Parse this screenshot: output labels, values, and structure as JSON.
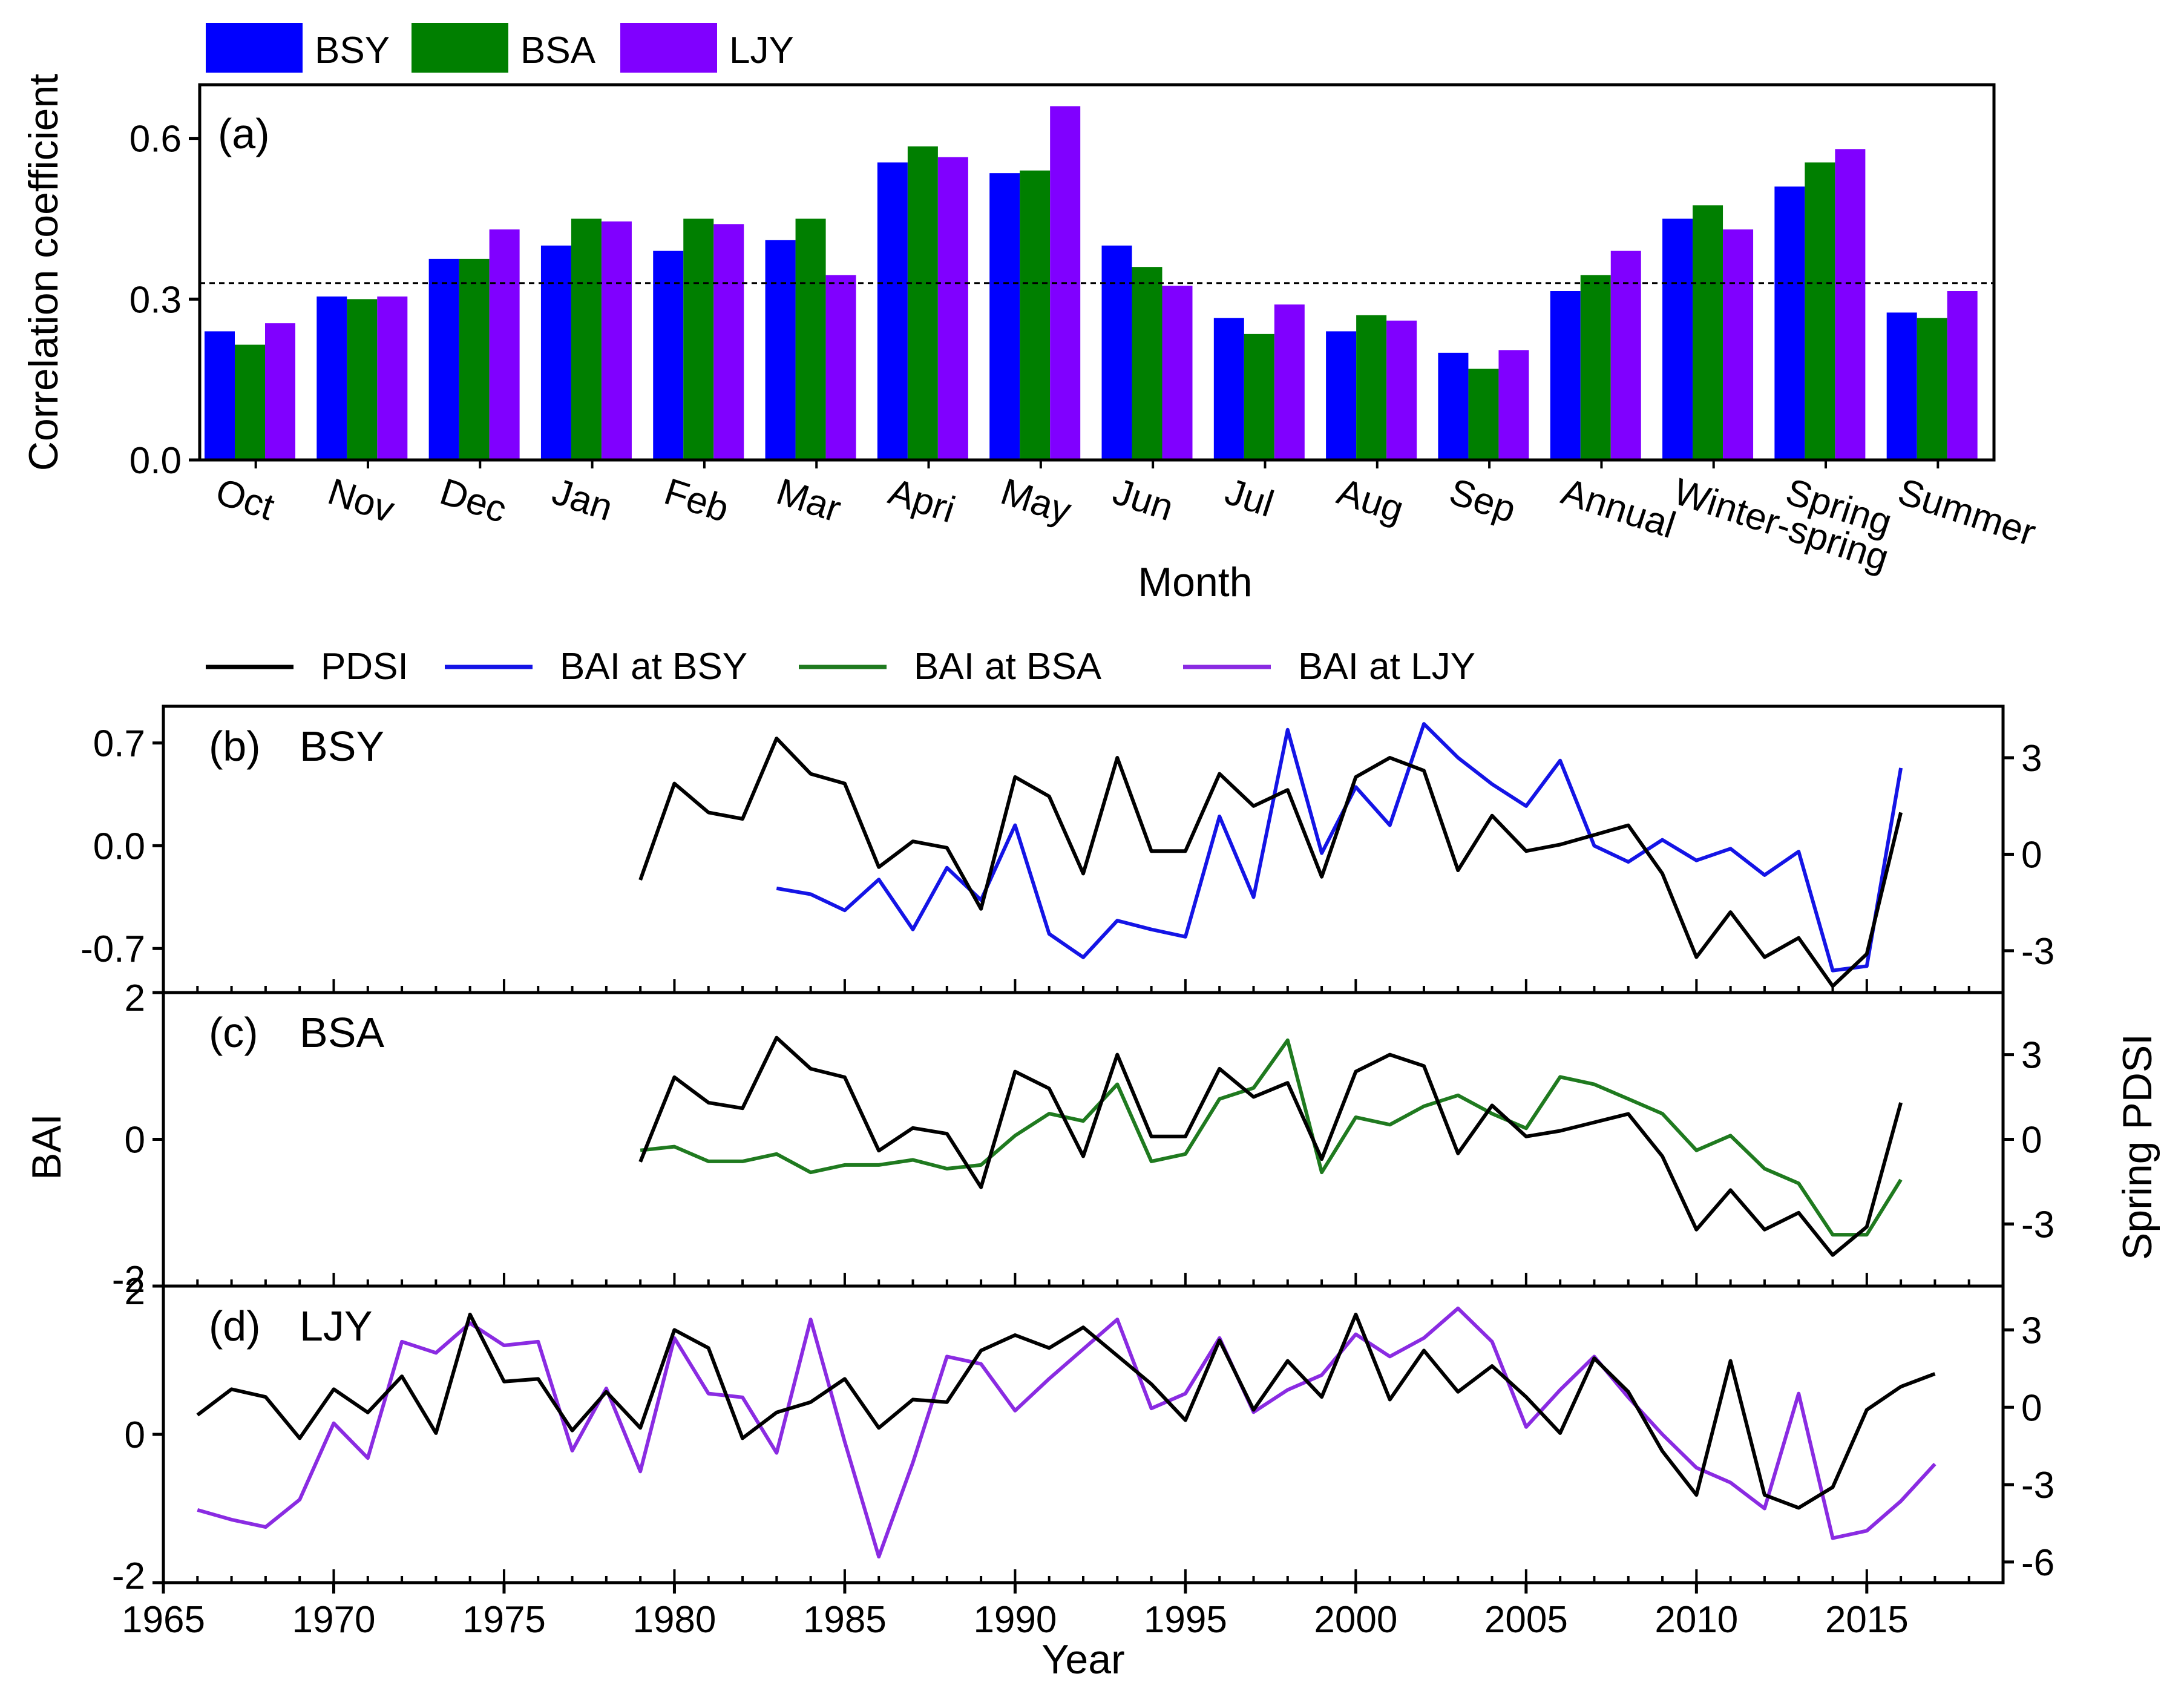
{
  "figure": {
    "title": ""
  },
  "chart_data": [
    {
      "type": "bar",
      "panel_label": "(a)",
      "ylabel": "Correlation coefficient",
      "xlabel": "Month",
      "ylim": [
        0,
        0.7
      ],
      "yticks": [
        0.0,
        0.3,
        0.6
      ],
      "yticklabels": [
        "0.0",
        "0.3",
        "0.6"
      ],
      "threshold": 0.33,
      "categories": [
        "Oct",
        "Nov",
        "Dec",
        "Jan",
        "Feb",
        "Mar",
        "Apri",
        "May",
        "Jun",
        "Jul",
        "Aug",
        "Sep",
        "Annual",
        "Winter-spring",
        "Spring",
        "Summer"
      ],
      "legend": [
        "BSY",
        "BSA",
        "LJY"
      ],
      "series": [
        {
          "name": "BSY",
          "color": "#0000ff",
          "values": [
            0.24,
            0.305,
            0.375,
            0.4,
            0.39,
            0.41,
            0.555,
            0.535,
            0.4,
            0.265,
            0.24,
            0.2,
            0.315,
            0.45,
            0.51,
            0.275
          ]
        },
        {
          "name": "BSA",
          "color": "#007f00",
          "values": [
            0.215,
            0.3,
            0.375,
            0.45,
            0.45,
            0.45,
            0.585,
            0.54,
            0.36,
            0.235,
            0.27,
            0.17,
            0.345,
            0.475,
            0.555,
            0.265
          ]
        },
        {
          "name": "LJY",
          "color": "#8000ff",
          "values": [
            0.255,
            0.305,
            0.43,
            0.445,
            0.44,
            0.345,
            0.565,
            0.66,
            0.325,
            0.29,
            0.26,
            0.205,
            0.39,
            0.43,
            0.58,
            0.315
          ]
        }
      ]
    },
    {
      "type": "line",
      "legend": [
        "PDSI",
        "BAI at BSY",
        "BAI at BSA",
        "BAI at LJY"
      ],
      "xlabel": "Year",
      "xlim": [
        1965,
        2019
      ],
      "xticks": [
        1965,
        1970,
        1975,
        1980,
        1985,
        1990,
        1995,
        2000,
        2005,
        2010,
        2015
      ],
      "shared_ylabel_left": "BAI",
      "shared_ylabel_right": "Spring PDSI",
      "panels": [
        {
          "label": "(b)",
          "site": "BSY",
          "ylim": [
            -1.0,
            0.95
          ],
          "yticks": [
            -0.7,
            0.0,
            0.7
          ],
          "yticklabels": [
            "-0.7",
            "0.0",
            "0.7"
          ],
          "y2lim": [
            -4.3,
            4.6
          ],
          "y2ticks": [
            -3,
            0,
            3
          ],
          "y2ticklabels": [
            "-3",
            "0",
            "3"
          ],
          "series": [
            {
              "name": "PDSI",
              "color": "#000000",
              "x": [
                1979,
                1980,
                1981,
                1982,
                1983,
                1984,
                1985,
                1986,
                1987,
                1988,
                1989,
                1990,
                1991,
                1992,
                1993,
                1994,
                1995,
                1996,
                1997,
                1998,
                1999,
                2000,
                2001,
                2002,
                2003,
                2004,
                2005,
                2006,
                2007,
                2008,
                2009,
                2010,
                2011,
                2012,
                2013,
                2014,
                2015,
                2016
              ],
              "y": [
                -0.8,
                2.2,
                1.3,
                1.1,
                3.6,
                2.5,
                2.2,
                -0.4,
                0.4,
                0.2,
                -1.7,
                2.4,
                1.8,
                -0.6,
                3.0,
                0.1,
                0.1,
                2.5,
                1.5,
                2.0,
                -0.7,
                2.4,
                3.0,
                2.6,
                -0.5,
                1.2,
                0.1,
                0.3,
                0.6,
                0.9,
                -0.6,
                -3.2,
                -1.8,
                -3.2,
                -2.6,
                -4.1,
                -3.1,
                1.3
              ]
            },
            {
              "name": "BAI at BSY",
              "color": "#1414e6",
              "y_axis": "left",
              "x": [
                1983,
                1984,
                1985,
                1986,
                1987,
                1988,
                1989,
                1990,
                1991,
                1992,
                1993,
                1994,
                1995,
                1996,
                1997,
                1998,
                1999,
                2000,
                2001,
                2002,
                2003,
                2004,
                2005,
                2006,
                2007,
                2008,
                2009,
                2010,
                2011,
                2012,
                2013,
                2014,
                2015,
                2016
              ],
              "y": [
                -0.29,
                -0.33,
                -0.44,
                -0.23,
                -0.57,
                -0.15,
                -0.37,
                0.14,
                -0.6,
                -0.76,
                -0.51,
                -0.57,
                -0.62,
                0.2,
                -0.35,
                0.79,
                -0.05,
                0.4,
                0.14,
                0.83,
                0.6,
                0.42,
                0.27,
                0.58,
                0.0,
                -0.11,
                0.04,
                -0.1,
                -0.02,
                -0.2,
                -0.04,
                -0.85,
                -0.82,
                0.53
              ]
            }
          ]
        },
        {
          "label": "(c)",
          "site": "BSA",
          "ylim": [
            -2.0,
            2.0
          ],
          "yticks": [
            -2,
            0,
            2
          ],
          "yticklabels": [
            "-2",
            "0",
            "2"
          ],
          "y2lim": [
            -5.2,
            5.2
          ],
          "y2ticks": [
            -3,
            0,
            3
          ],
          "y2ticklabels": [
            "-3",
            "0",
            "3"
          ],
          "series": [
            {
              "name": "PDSI",
              "color": "#000000",
              "x": [
                1979,
                1980,
                1981,
                1982,
                1983,
                1984,
                1985,
                1986,
                1987,
                1988,
                1989,
                1990,
                1991,
                1992,
                1993,
                1994,
                1995,
                1996,
                1997,
                1998,
                1999,
                2000,
                2001,
                2002,
                2003,
                2004,
                2005,
                2006,
                2007,
                2008,
                2009,
                2010,
                2011,
                2012,
                2013,
                2014,
                2015,
                2016
              ],
              "y": [
                -0.8,
                2.2,
                1.3,
                1.1,
                3.6,
                2.5,
                2.2,
                -0.4,
                0.4,
                0.2,
                -1.7,
                2.4,
                1.8,
                -0.6,
                3.0,
                0.1,
                0.1,
                2.5,
                1.5,
                2.0,
                -0.7,
                2.4,
                3.0,
                2.6,
                -0.5,
                1.2,
                0.1,
                0.3,
                0.6,
                0.9,
                -0.6,
                -3.2,
                -1.8,
                -3.2,
                -2.6,
                -4.1,
                -3.1,
                1.3
              ]
            },
            {
              "name": "BAI at BSA",
              "color": "#1f7a1f",
              "y_axis": "left",
              "x": [
                1979,
                1980,
                1981,
                1982,
                1983,
                1984,
                1985,
                1986,
                1987,
                1988,
                1989,
                1990,
                1991,
                1992,
                1993,
                1994,
                1995,
                1996,
                1997,
                1998,
                1999,
                2000,
                2001,
                2002,
                2003,
                2004,
                2005,
                2006,
                2007,
                2008,
                2009,
                2010,
                2011,
                2012,
                2013,
                2014,
                2015,
                2016
              ],
              "y": [
                -0.15,
                -0.1,
                -0.3,
                -0.3,
                -0.2,
                -0.45,
                -0.35,
                -0.35,
                -0.28,
                -0.4,
                -0.35,
                0.05,
                0.35,
                0.25,
                0.75,
                -0.3,
                -0.2,
                0.55,
                0.7,
                1.35,
                -0.45,
                0.3,
                0.2,
                0.45,
                0.6,
                0.35,
                0.15,
                0.85,
                0.75,
                0.55,
                0.35,
                -0.15,
                0.05,
                -0.4,
                -0.6,
                -1.3,
                -1.3,
                -0.55
              ]
            }
          ]
        },
        {
          "label": "(d)",
          "site": "LJY",
          "ylim": [
            -2.0,
            2.0
          ],
          "yticks": [
            -2,
            0,
            2
          ],
          "yticklabels": [
            "-2",
            "0",
            "2"
          ],
          "y2lim": [
            -6.8,
            4.7
          ],
          "y2ticks": [
            -6,
            -3,
            0,
            3
          ],
          "y2ticklabels": [
            "-6",
            "-3",
            "0",
            "3"
          ],
          "series": [
            {
              "name": "PDSI",
              "color": "#000000",
              "x": [
                1966,
                1967,
                1968,
                1969,
                1970,
                1971,
                1972,
                1973,
                1974,
                1975,
                1976,
                1977,
                1978,
                1979,
                1980,
                1981,
                1982,
                1983,
                1984,
                1985,
                1986,
                1987,
                1988,
                1989,
                1990,
                1991,
                1992,
                1993,
                1994,
                1995,
                1996,
                1997,
                1998,
                1999,
                2000,
                2001,
                2002,
                2003,
                2004,
                2005,
                2006,
                2007,
                2008,
                2009,
                2010,
                2011,
                2012,
                2013,
                2014,
                2015,
                2016,
                2017
              ],
              "y": [
                -0.3,
                0.7,
                0.4,
                -1.2,
                0.7,
                -0.2,
                1.2,
                -1.0,
                3.6,
                1.0,
                1.1,
                -0.9,
                0.6,
                -0.8,
                3.0,
                2.3,
                -1.2,
                -0.2,
                0.2,
                1.1,
                -0.8,
                0.3,
                0.2,
                2.2,
                2.8,
                2.3,
                3.1,
                2.0,
                0.9,
                -0.5,
                2.6,
                -0.1,
                1.8,
                0.4,
                3.6,
                0.3,
                2.2,
                0.6,
                1.6,
                0.4,
                -1.0,
                1.9,
                0.6,
                -1.7,
                -3.4,
                1.8,
                -3.4,
                -3.9,
                -3.1,
                -0.1,
                0.8,
                1.3
              ]
            },
            {
              "name": "BAI at LJY",
              "color": "#8a2be2",
              "y_axis": "left",
              "x": [
                1966,
                1967,
                1968,
                1969,
                1970,
                1971,
                1972,
                1973,
                1974,
                1975,
                1976,
                1977,
                1978,
                1979,
                1980,
                1981,
                1982,
                1983,
                1984,
                1985,
                1986,
                1987,
                1988,
                1989,
                1990,
                1991,
                1992,
                1993,
                1994,
                1995,
                1996,
                1997,
                1998,
                1999,
                2000,
                2001,
                2002,
                2003,
                2004,
                2005,
                2006,
                2007,
                2008,
                2009,
                2010,
                2011,
                2012,
                2013,
                2014,
                2015,
                2016,
                2017
              ],
              "y": [
                -1.02,
                -1.15,
                -1.25,
                -0.88,
                0.15,
                -0.32,
                1.25,
                1.1,
                1.5,
                1.2,
                1.25,
                -0.22,
                0.62,
                -0.5,
                1.3,
                0.55,
                0.5,
                -0.25,
                1.55,
                -0.1,
                -1.65,
                -0.38,
                1.05,
                0.95,
                0.32,
                0.75,
                1.15,
                1.55,
                0.35,
                0.55,
                1.3,
                0.3,
                0.6,
                0.8,
                1.35,
                1.05,
                1.3,
                1.7,
                1.25,
                0.1,
                0.6,
                1.05,
                0.5,
                0.0,
                -0.45,
                -0.65,
                -1.0,
                0.55,
                -1.4,
                -1.3,
                -0.9,
                -0.4
              ]
            }
          ]
        }
      ]
    }
  ]
}
